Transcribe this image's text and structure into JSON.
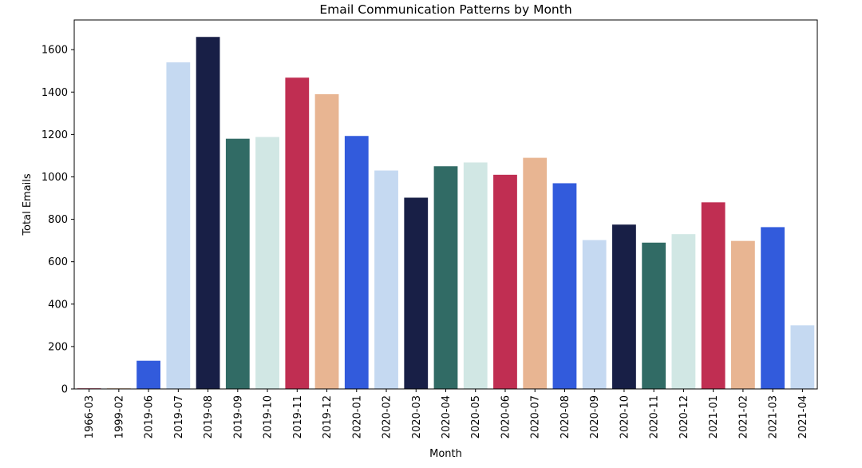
{
  "chart_data": {
    "type": "bar",
    "title": "Email Communication Patterns by Month",
    "xlabel": "Month",
    "ylabel": "Total Emails",
    "ylim": [
      0,
      1740
    ],
    "yticks": [
      0,
      200,
      400,
      600,
      800,
      1000,
      1200,
      1400,
      1600
    ],
    "grid": false,
    "legend": "none",
    "categories": [
      "1966-03",
      "1999-02",
      "2019-06",
      "2019-07",
      "2019-08",
      "2019-09",
      "2019-10",
      "2019-11",
      "2019-12",
      "2020-01",
      "2020-02",
      "2020-03",
      "2020-04",
      "2020-05",
      "2020-06",
      "2020-07",
      "2020-08",
      "2020-09",
      "2020-10",
      "2020-11",
      "2020-12",
      "2021-01",
      "2021-02",
      "2021-03",
      "2021-04"
    ],
    "values": [
      3,
      3,
      133,
      1540,
      1660,
      1180,
      1188,
      1468,
      1390,
      1193,
      1030,
      902,
      1050,
      1068,
      1010,
      1090,
      970,
      702,
      775,
      690,
      730,
      880,
      698,
      763,
      300
    ],
    "palette": [
      "#c02e52",
      "#e8b592",
      "#325bdc",
      "#c5d9f1",
      "#181f46",
      "#316b65",
      "#d1e7e4"
    ]
  }
}
